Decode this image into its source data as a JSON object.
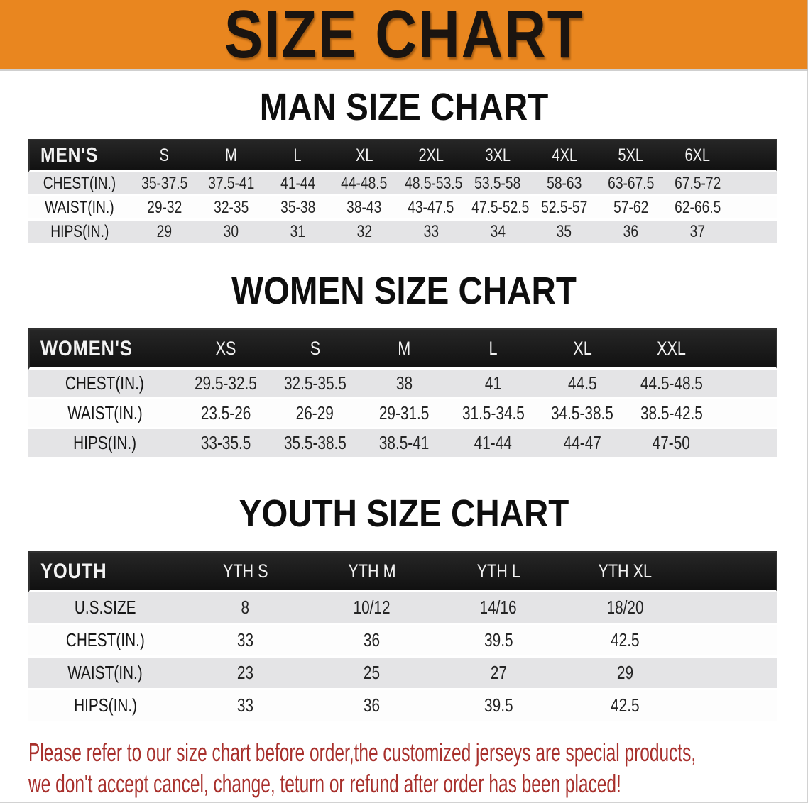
{
  "banner": {
    "title": "SIZE CHART"
  },
  "sections": [
    {
      "id": "men",
      "title": "MAN SIZE CHART",
      "header_label": "MEN'S",
      "columns": [
        "S",
        "M",
        "L",
        "XL",
        "2XL",
        "3XL",
        "4XL",
        "5XL",
        "6XL"
      ],
      "rows": [
        {
          "label": "CHEST(IN.)",
          "values": [
            "35-37.5",
            "37.5-41",
            "41-44",
            "44-48.5",
            "48.5-53.5",
            "53.5-58",
            "58-63",
            "63-67.5",
            "67.5-72"
          ]
        },
        {
          "label": "WAIST(IN.)",
          "values": [
            "29-32",
            "32-35",
            "35-38",
            "38-43",
            "43-47.5",
            "47.5-52.5",
            "52.5-57",
            "57-62",
            "62-66.5"
          ]
        },
        {
          "label": "HIPS(IN.)",
          "values": [
            "29",
            "30",
            "31",
            "32",
            "33",
            "34",
            "35",
            "36",
            "37"
          ]
        }
      ]
    },
    {
      "id": "women",
      "title": "WOMEN SIZE CHART",
      "header_label": "WOMEN'S",
      "columns": [
        "XS",
        "S",
        "M",
        "L",
        "XL",
        "XXL"
      ],
      "rows": [
        {
          "label": "CHEST(IN.)",
          "values": [
            "29.5-32.5",
            "32.5-35.5",
            "38",
            "41",
            "44.5",
            "44.5-48.5"
          ]
        },
        {
          "label": "WAIST(IN.)",
          "values": [
            "23.5-26",
            "26-29",
            "29-31.5",
            "31.5-34.5",
            "34.5-38.5",
            "38.5-42.5"
          ]
        },
        {
          "label": "HIPS(IN.)",
          "values": [
            "33-35.5",
            "35.5-38.5",
            "38.5-41",
            "41-44",
            "44-47",
            "47-50"
          ]
        }
      ]
    },
    {
      "id": "youth",
      "title": "YOUTH SIZE CHART",
      "header_label": "YOUTH",
      "columns": [
        "YTH S",
        "YTH M",
        "YTH L",
        "YTH XL"
      ],
      "rows": [
        {
          "label": "U.S.SIZE",
          "values": [
            "8",
            "10/12",
            "14/16",
            "18/20"
          ]
        },
        {
          "label": "CHEST(IN.)",
          "values": [
            "33",
            "36",
            "39.5",
            "42.5"
          ]
        },
        {
          "label": "WAIST(IN.)",
          "values": [
            "23",
            "25",
            "27",
            "29"
          ]
        },
        {
          "label": "HIPS(IN.)",
          "values": [
            "33",
            "36",
            "39.5",
            "42.5"
          ]
        }
      ]
    }
  ],
  "disclaimer": {
    "line1": "Please refer to our size chart before order,the customized jerseys are special products,",
    "line2": "we don't accept cancel, change, teturn or refund after order has been placed!"
  },
  "colors": {
    "banner_bg": "#E9861F",
    "banner_text": "#1A1410",
    "header_bar_bg": "#111111",
    "header_bar_top": "#262626",
    "header_bar_text": "#F2F2F2",
    "stripe_gray": "#E4E4E6",
    "stripe_white": "#FDFDFD",
    "disclaimer_red": "#A8302C"
  }
}
